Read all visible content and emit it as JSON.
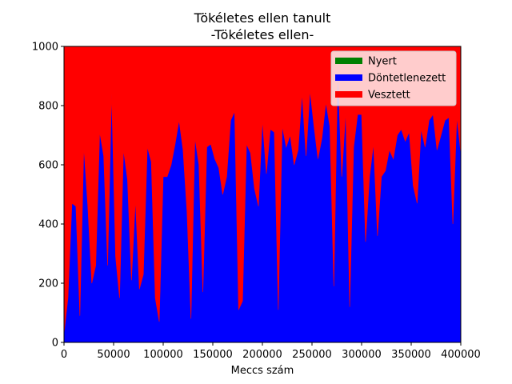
{
  "chart_data": {
    "type": "area",
    "stacked": true,
    "title": "Tökéletes ellen tanult",
    "subtitle": "-Tökéletes ellen-",
    "xlabel": "Meccs szám",
    "ylabel": "",
    "xlim": [
      0,
      400000
    ],
    "ylim": [
      0,
      1000
    ],
    "xticks": [
      0,
      50000,
      100000,
      150000,
      200000,
      250000,
      300000,
      350000,
      400000
    ],
    "yticks": [
      0,
      200,
      400,
      600,
      800,
      1000
    ],
    "grid": false,
    "legend_position": "top-right",
    "x": [
      0,
      4000,
      8000,
      12000,
      16000,
      20000,
      24000,
      28000,
      32000,
      36000,
      40000,
      44000,
      48000,
      52000,
      56000,
      60000,
      64000,
      68000,
      72000,
      76000,
      80000,
      84000,
      88000,
      92000,
      96000,
      100000,
      104000,
      108000,
      112000,
      116000,
      120000,
      124000,
      128000,
      132000,
      136000,
      140000,
      144000,
      148000,
      152000,
      156000,
      160000,
      164000,
      168000,
      172000,
      176000,
      180000,
      184000,
      188000,
      192000,
      196000,
      200000,
      204000,
      208000,
      212000,
      216000,
      220000,
      224000,
      228000,
      232000,
      236000,
      240000,
      244000,
      248000,
      252000,
      256000,
      260000,
      264000,
      268000,
      272000,
      276000,
      280000,
      284000,
      288000,
      292000,
      296000,
      300000,
      304000,
      308000,
      312000,
      316000,
      320000,
      324000,
      328000,
      332000,
      336000,
      340000,
      344000,
      348000,
      352000,
      356000,
      360000,
      364000,
      368000,
      372000,
      376000,
      380000,
      384000,
      388000,
      392000,
      396000,
      400000
    ],
    "series": [
      {
        "name": "Nyert",
        "color": "#008000",
        "values": [
          0,
          0,
          0,
          0,
          0,
          0,
          0,
          0,
          0,
          0,
          0,
          0,
          0,
          0,
          0,
          0,
          0,
          0,
          0,
          0,
          0,
          0,
          0,
          0,
          0,
          0,
          0,
          0,
          0,
          0,
          0,
          0,
          0,
          0,
          0,
          0,
          0,
          0,
          0,
          0,
          0,
          0,
          0,
          0,
          0,
          0,
          0,
          0,
          0,
          0,
          0,
          0,
          0,
          0,
          0,
          0,
          0,
          0,
          0,
          0,
          0,
          0,
          0,
          0,
          0,
          0,
          0,
          0,
          0,
          0,
          0,
          0,
          0,
          0,
          0,
          0,
          0,
          0,
          0,
          0,
          0,
          0,
          0,
          0,
          0,
          0,
          0,
          0,
          0,
          0,
          0,
          0,
          0,
          0,
          0,
          0,
          0,
          0,
          0,
          0,
          0
        ]
      },
      {
        "name": "Döntetlenezett",
        "color": "#0000ff",
        "values": [
          30,
          150,
          470,
          460,
          90,
          660,
          460,
          200,
          260,
          710,
          630,
          260,
          840,
          290,
          150,
          650,
          550,
          210,
          480,
          180,
          230,
          660,
          610,
          150,
          70,
          560,
          560,
          600,
          670,
          750,
          650,
          440,
          80,
          690,
          600,
          170,
          660,
          670,
          620,
          590,
          500,
          560,
          750,
          780,
          110,
          140,
          670,
          640,
          520,
          460,
          750,
          570,
          720,
          710,
          110,
          730,
          660,
          700,
          600,
          650,
          840,
          630,
          850,
          730,
          620,
          690,
          810,
          730,
          190,
          920,
          560,
          780,
          120,
          660,
          770,
          770,
          340,
          560,
          670,
          360,
          560,
          580,
          650,
          620,
          700,
          720,
          680,
          710,
          530,
          470,
          720,
          660,
          750,
          770,
          650,
          700,
          750,
          760,
          400,
          760,
          640
        ]
      },
      {
        "name": "Vesztett",
        "color": "#ff0000",
        "values": [
          970,
          850,
          530,
          540,
          910,
          340,
          540,
          800,
          740,
          290,
          370,
          740,
          160,
          710,
          850,
          350,
          450,
          790,
          520,
          820,
          770,
          340,
          390,
          850,
          930,
          440,
          440,
          400,
          330,
          250,
          350,
          560,
          920,
          310,
          400,
          830,
          340,
          330,
          380,
          410,
          500,
          440,
          250,
          220,
          890,
          860,
          330,
          360,
          480,
          540,
          250,
          430,
          280,
          290,
          890,
          270,
          340,
          300,
          400,
          350,
          160,
          370,
          150,
          270,
          380,
          310,
          190,
          270,
          810,
          80,
          440,
          220,
          880,
          340,
          230,
          230,
          660,
          440,
          330,
          640,
          440,
          420,
          350,
          380,
          300,
          280,
          320,
          290,
          470,
          530,
          280,
          340,
          250,
          230,
          350,
          300,
          250,
          240,
          600,
          240,
          360
        ]
      }
    ]
  }
}
